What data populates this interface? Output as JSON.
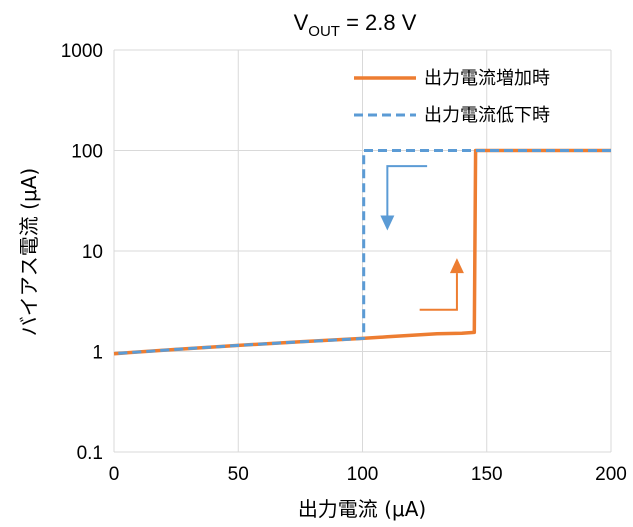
{
  "chart_data": {
    "type": "line",
    "title": {
      "main": "V",
      "sub": "OUT",
      "rest": " = 2.8 V"
    },
    "xlabel": "出力電流 (μA)",
    "ylabel": "バイアス電流 (μA)",
    "xlim": [
      0,
      200
    ],
    "ylim": [
      0.1,
      1000
    ],
    "y_scale": "log",
    "x_ticks": [
      0,
      50,
      100,
      150,
      200
    ],
    "x_tick_labels": [
      "0",
      "50",
      "100",
      "150",
      "200"
    ],
    "y_ticks": [
      0.1,
      1,
      10,
      100,
      1000
    ],
    "y_tick_labels": [
      "0.1",
      "1",
      "10",
      "100",
      "1000"
    ],
    "grid": true,
    "legend_position": "top-right",
    "series": [
      {
        "name": "出力電流増加時",
        "color": "#ED7D31",
        "style": "solid",
        "x": [
          0,
          25,
          50,
          75,
          100,
          110,
          120,
          130,
          140,
          145,
          145.5,
          146,
          170,
          200
        ],
        "y": [
          0.95,
          1.05,
          1.15,
          1.25,
          1.35,
          1.4,
          1.45,
          1.5,
          1.52,
          1.55,
          100,
          100,
          100,
          100
        ]
      },
      {
        "name": "出力電流低下時",
        "color": "#5B9BD5",
        "style": "dashed",
        "x": [
          200,
          170,
          145,
          120,
          101,
          100.5,
          100.5,
          75,
          50,
          25,
          0
        ],
        "y": [
          100,
          100,
          100,
          100,
          100,
          100,
          1.35,
          1.25,
          1.15,
          1.05,
          0.95
        ]
      }
    ],
    "annotations": [
      {
        "type": "arrow",
        "color": "#5B9BD5",
        "direction": "down",
        "x_from": 126,
        "x_corner": 110,
        "y_from": 70,
        "y_to": 16
      },
      {
        "type": "arrow",
        "color": "#ED7D31",
        "direction": "up",
        "x_from": 123,
        "x_corner": 138,
        "y_from": 2.6,
        "y_to": 8.5
      }
    ]
  }
}
